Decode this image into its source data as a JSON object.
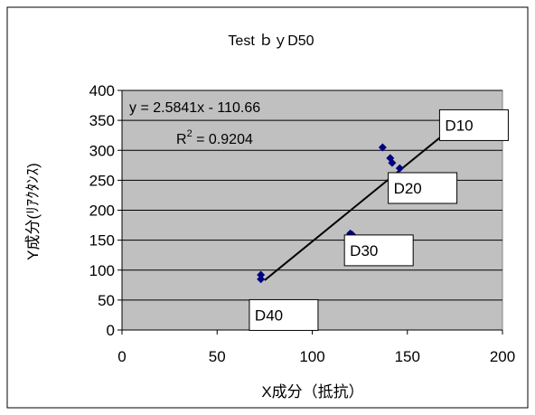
{
  "chart_data": {
    "type": "scatter",
    "title": "Test ｂｙD50",
    "xlabel": "X成分（抵抗）",
    "ylabel": "Y成分(ﾘｱｸﾀﾝｽ)",
    "xlim": [
      0,
      200
    ],
    "ylim": [
      0,
      400
    ],
    "xticks": [
      0,
      50,
      100,
      150,
      200
    ],
    "yticks": [
      0,
      50,
      100,
      150,
      200,
      250,
      300,
      350,
      400
    ],
    "grid": "horizontal",
    "legend": "none",
    "series": [
      {
        "points": [
          {
            "x": 73,
            "y": 92
          },
          {
            "x": 73,
            "y": 85
          },
          {
            "x": 120,
            "y": 161
          },
          {
            "x": 121,
            "y": 159
          },
          {
            "x": 137,
            "y": 305
          },
          {
            "x": 141,
            "y": 287
          },
          {
            "x": 142,
            "y": 279
          },
          {
            "x": 146,
            "y": 270
          },
          {
            "x": 177,
            "y": 348
          },
          {
            "x": 178,
            "y": 346
          }
        ]
      }
    ],
    "trendline": {
      "slope": 2.5841,
      "intercept": -110.66,
      "x_range": [
        75,
        177
      ],
      "equation": "y = 2.5841x - 110.66",
      "r2_prefix": "R",
      "r2_exp": "2",
      "r2_value": " = 0.9204"
    },
    "annotations": [
      {
        "text": "D10",
        "x": 185,
        "y": 342
      },
      {
        "text": "D20",
        "x": 158,
        "y": 237
      },
      {
        "text": "D30",
        "x": 135,
        "y": 133
      },
      {
        "text": "D40",
        "x": 85,
        "y": 25
      }
    ],
    "colors": {
      "plot_bg": "#c0c0c0",
      "marker": "#000080",
      "line": "#000000",
      "grid": "#000000"
    }
  }
}
